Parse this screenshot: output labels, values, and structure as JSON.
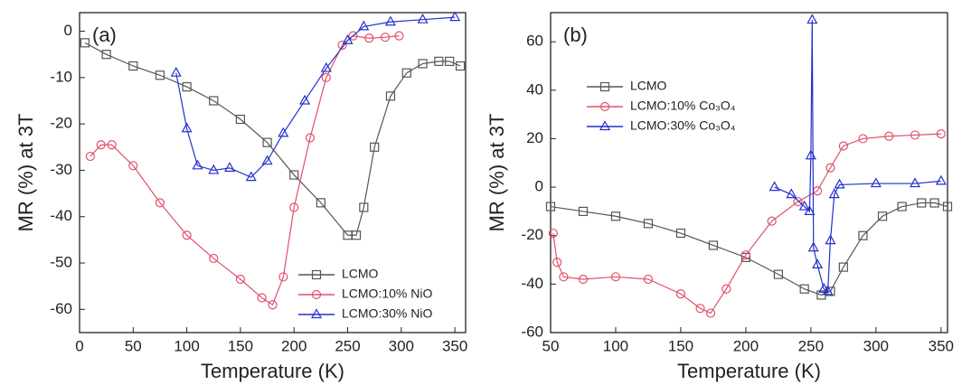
{
  "chart_data": [
    {
      "type": "line",
      "label": "(a)",
      "xlabel": "Temperature (K)",
      "ylabel": "MR (%) at 3T",
      "xlim": [
        0,
        360
      ],
      "ylim": [
        -65,
        4
      ],
      "xticks": [
        0,
        50,
        100,
        150,
        200,
        250,
        300,
        350
      ],
      "yticks": [
        -60,
        -50,
        -40,
        -30,
        -20,
        -10,
        0
      ],
      "legend": "lower right",
      "series": [
        {
          "name": "LCMO",
          "color": "#555555",
          "marker": "square",
          "x": [
            5,
            25,
            50,
            75,
            100,
            125,
            150,
            175,
            200,
            225,
            250,
            258,
            265,
            275,
            290,
            305,
            320,
            335,
            345,
            355
          ],
          "values": [
            -2.5,
            -5,
            -7.5,
            -9.5,
            -12,
            -15,
            -19,
            -24,
            -31,
            -37,
            -44,
            -44,
            -38,
            -25,
            -14,
            -9,
            -7,
            -6.5,
            -6.5,
            -7.5
          ]
        },
        {
          "name": "LCMO:10% NiO",
          "color": "#e0506a",
          "marker": "circle",
          "x": [
            10,
            20,
            30,
            50,
            75,
            100,
            125,
            150,
            170,
            180,
            190,
            200,
            215,
            230,
            245,
            255,
            270,
            285,
            298
          ],
          "values": [
            -27,
            -24.5,
            -24.5,
            -29,
            -37,
            -44,
            -49,
            -53.5,
            -57.5,
            -59,
            -53,
            -38,
            -23,
            -10,
            -3,
            -1,
            -1.5,
            -1.3,
            -1
          ]
        },
        {
          "name": "LCMO:30% NiO",
          "color": "#2230cc",
          "marker": "triangle",
          "x": [
            90,
            100,
            110,
            125,
            140,
            160,
            175,
            190,
            210,
            230,
            250,
            265,
            290,
            320,
            350
          ],
          "values": [
            -9,
            -21,
            -29,
            -30,
            -29.5,
            -31.5,
            -28,
            -22,
            -15,
            -8,
            -2,
            1,
            2,
            2.5,
            3
          ]
        }
      ]
    },
    {
      "type": "line",
      "label": "(b)",
      "xlabel": "Temperature (K)",
      "ylabel": "MR (%) at 3T",
      "xlim": [
        50,
        355
      ],
      "ylim": [
        -60,
        72
      ],
      "xticks": [
        50,
        100,
        150,
        200,
        250,
        300,
        350
      ],
      "yticks": [
        -60,
        -40,
        -20,
        0,
        20,
        40,
        60
      ],
      "legend": "upper left",
      "series": [
        {
          "name": "LCMO",
          "color": "#555555",
          "marker": "square",
          "x": [
            50,
            75,
            100,
            125,
            150,
            175,
            200,
            225,
            245,
            258,
            265,
            275,
            290,
            305,
            320,
            335,
            345,
            355
          ],
          "values": [
            -8,
            -10,
            -12,
            -15,
            -19,
            -24,
            -29,
            -36,
            -42,
            -44.5,
            -43,
            -33,
            -20,
            -12,
            -8,
            -6.5,
            -6.5,
            -8
          ]
        },
        {
          "name": "LCMO:10% Co₃O₄",
          "color": "#e0506a",
          "marker": "circle",
          "x": [
            52,
            55,
            60,
            75,
            100,
            125,
            150,
            165,
            173,
            185,
            200,
            220,
            240,
            255,
            265,
            275,
            290,
            310,
            330,
            350
          ],
          "values": [
            -19,
            -31,
            -37,
            -38,
            -37,
            -38,
            -44,
            -50,
            -52,
            -42,
            -28,
            -14,
            -6,
            -1.5,
            8,
            17,
            20,
            21,
            21.5,
            22
          ]
        },
        {
          "name": "LCMO:30% Co₃O₄",
          "color": "#2230cc",
          "marker": "triangle",
          "x": [
            222,
            235,
            245,
            249,
            250,
            251,
            252,
            255,
            260,
            263,
            265,
            268,
            272,
            300,
            330,
            350
          ],
          "values": [
            0,
            -3,
            -8,
            -10,
            13,
            69,
            -25,
            -32,
            -42,
            -43,
            -22,
            -3,
            1,
            1.5,
            1.5,
            2.5
          ]
        }
      ]
    }
  ]
}
